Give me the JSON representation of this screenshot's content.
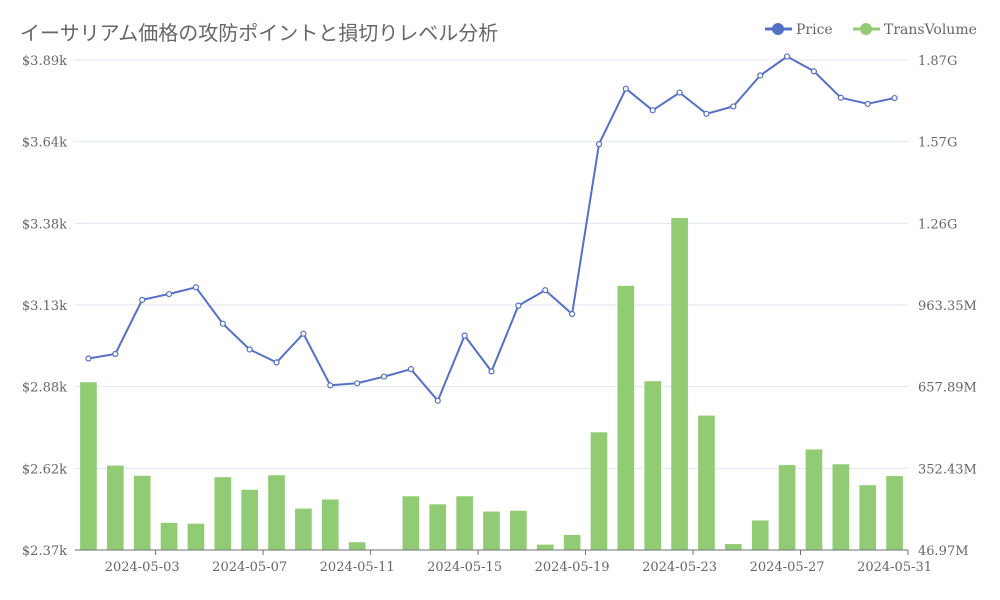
{
  "chart_data": {
    "type": "bar",
    "title": "イーサリアム価格の攻防ポイントと損切りレベル分析",
    "x": [
      "2024-05-01",
      "2024-05-02",
      "2024-05-03",
      "2024-05-04",
      "2024-05-05",
      "2024-05-06",
      "2024-05-07",
      "2024-05-08",
      "2024-05-09",
      "2024-05-10",
      "2024-05-11",
      "2024-05-12",
      "2024-05-13",
      "2024-05-14",
      "2024-05-15",
      "2024-05-16",
      "2024-05-17",
      "2024-05-18",
      "2024-05-19",
      "2024-05-20",
      "2024-05-21",
      "2024-05-22",
      "2024-05-23",
      "2024-05-24",
      "2024-05-25",
      "2024-05-26",
      "2024-05-27",
      "2024-05-28",
      "2024-05-29",
      "2024-05-30",
      "2024-05-31"
    ],
    "x_tick_labels": [
      "2024-05-03",
      "2024-05-07",
      "2024-05-11",
      "2024-05-15",
      "2024-05-19",
      "2024-05-23",
      "2024-05-27",
      "2024-05-31"
    ],
    "series": [
      {
        "name": "Price",
        "type": "line",
        "axis": "left",
        "color": "#5470c6",
        "values": [
          2964,
          2978,
          3146,
          3164,
          3185,
          3072,
          2992,
          2952,
          3041,
          2881,
          2887,
          2908,
          2931,
          2833,
          3035,
          2924,
          3128,
          3176,
          3102,
          3629,
          3801,
          3734,
          3789,
          3723,
          3746,
          3842,
          3901,
          3855,
          3773,
          3754,
          3772
        ]
      },
      {
        "name": "TransVolume",
        "type": "bar",
        "axis": "right",
        "color": "#91cc75",
        "values": [
          671000000,
          361000000,
          323000000,
          148000000,
          145000000,
          318000000,
          271000000,
          325000000,
          201000000,
          235000000,
          76000000,
          44000000,
          247000000,
          217000000,
          247000000,
          190000000,
          193000000,
          67000000,
          103000000,
          485000000,
          1030000000,
          675000000,
          1282000000,
          547000000,
          69000000,
          157000000,
          363000000,
          421000000,
          366000000,
          288000000,
          322000000
        ]
      }
    ],
    "y_left": {
      "ticks": [
        "$2.37k",
        "$2.62k",
        "$2.88k",
        "$3.13k",
        "$3.38k",
        "$3.64k",
        "$3.89k"
      ],
      "min": 2370,
      "max": 3890
    },
    "y_right": {
      "ticks": [
        "46.97M",
        "352.43M",
        "657.89M",
        "963.35M",
        "1.26G",
        "1.57G",
        "1.87G"
      ],
      "min": 46970000,
      "max": 1870000000
    },
    "grid": true,
    "legend_position": "top-right"
  }
}
